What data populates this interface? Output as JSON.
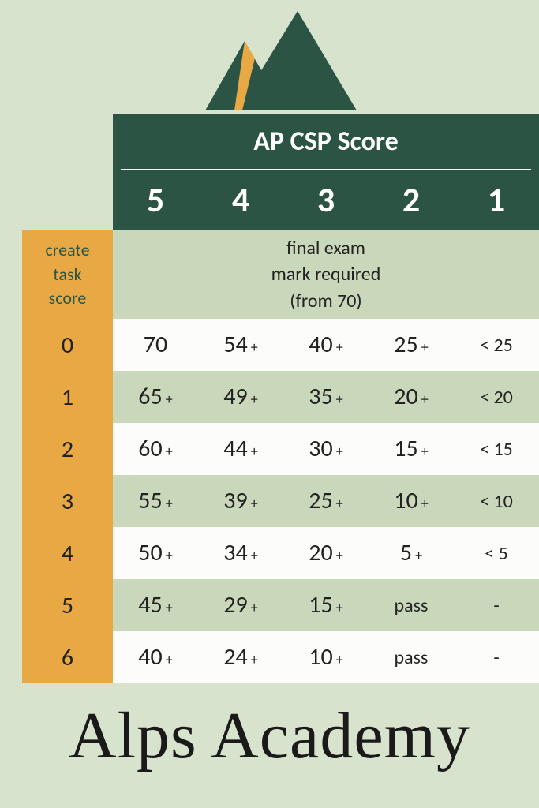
{
  "logo": {
    "mountain_dark": "#2c5444",
    "mountain_accent": "#e8a844",
    "bg": "#d7e3cd"
  },
  "header": {
    "title": "AP CSP Score",
    "scores": [
      "5",
      "4",
      "3",
      "2",
      "1"
    ]
  },
  "subhead": {
    "left_line1": "create",
    "left_line2": "task",
    "left_line3": "score",
    "right_line1": "final exam",
    "right_line2": "mark required",
    "right_line3": "(from 70)"
  },
  "rows": [
    {
      "task": "0",
      "cells": [
        {
          "v": "70",
          "s": ""
        },
        {
          "v": "54",
          "s": "+"
        },
        {
          "v": "40",
          "s": "+"
        },
        {
          "v": "25",
          "s": "+"
        },
        {
          "v": "< 25",
          "s": "",
          "small": true
        }
      ]
    },
    {
      "task": "1",
      "cells": [
        {
          "v": "65",
          "s": "+"
        },
        {
          "v": "49",
          "s": "+"
        },
        {
          "v": "35",
          "s": "+"
        },
        {
          "v": "20",
          "s": "+"
        },
        {
          "v": "< 20",
          "s": "",
          "small": true
        }
      ]
    },
    {
      "task": "2",
      "cells": [
        {
          "v": "60",
          "s": "+"
        },
        {
          "v": "44",
          "s": "+"
        },
        {
          "v": "30",
          "s": "+"
        },
        {
          "v": "15",
          "s": "+"
        },
        {
          "v": "< 15",
          "s": "",
          "small": true
        }
      ]
    },
    {
      "task": "3",
      "cells": [
        {
          "v": "55",
          "s": "+"
        },
        {
          "v": "39",
          "s": "+"
        },
        {
          "v": "25",
          "s": "+"
        },
        {
          "v": "10",
          "s": "+"
        },
        {
          "v": "< 10",
          "s": "",
          "small": true
        }
      ]
    },
    {
      "task": "4",
      "cells": [
        {
          "v": "50",
          "s": "+"
        },
        {
          "v": "34",
          "s": "+"
        },
        {
          "v": "20",
          "s": "+"
        },
        {
          "v": "5",
          "s": "+"
        },
        {
          "v": "< 5",
          "s": "",
          "small": true
        }
      ]
    },
    {
      "task": "5",
      "cells": [
        {
          "v": "45",
          "s": "+"
        },
        {
          "v": "29",
          "s": "+"
        },
        {
          "v": "15",
          "s": "+"
        },
        {
          "v": "pass",
          "s": "",
          "small": true
        },
        {
          "v": "-",
          "s": "",
          "small": true
        }
      ]
    },
    {
      "task": "6",
      "cells": [
        {
          "v": "40",
          "s": "+"
        },
        {
          "v": "24",
          "s": "+"
        },
        {
          "v": "10",
          "s": "+"
        },
        {
          "v": "pass",
          "s": "",
          "small": true
        },
        {
          "v": "-",
          "s": "",
          "small": true
        }
      ]
    }
  ],
  "brand": "Alps Academy",
  "colors": {
    "bg": "#d7e3cd",
    "header_bg": "#2c5444",
    "header_text": "#ffffff",
    "left_col_bg": "#e8a844",
    "row_even": "#fcfdfb",
    "row_odd": "#c9d8ba",
    "text": "#222222"
  }
}
